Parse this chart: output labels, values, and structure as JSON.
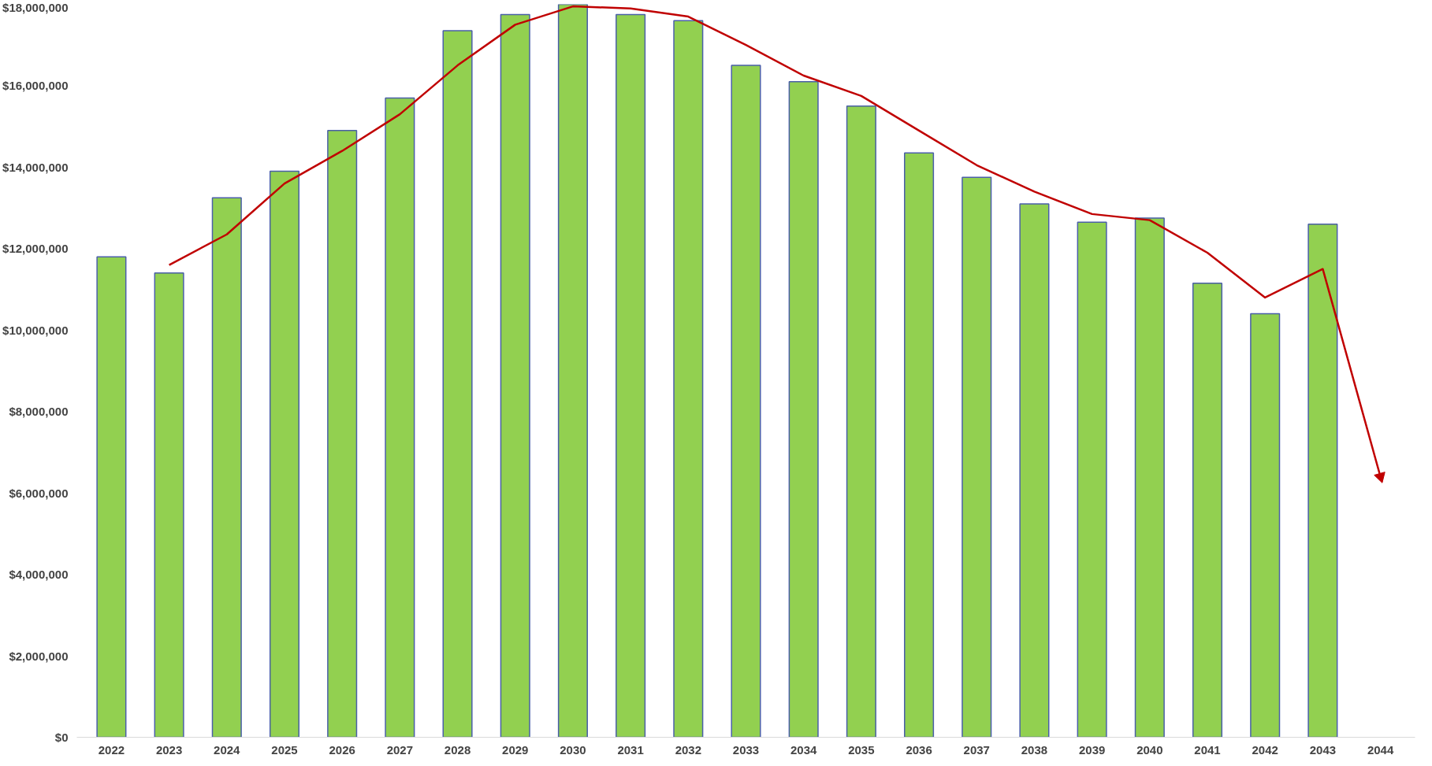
{
  "chart_data": {
    "type": "bar",
    "categories": [
      "2022",
      "2023",
      "2024",
      "2025",
      "2026",
      "2027",
      "2028",
      "2029",
      "2030",
      "2031",
      "2032",
      "2033",
      "2034",
      "2035",
      "2036",
      "2037",
      "2038",
      "2039",
      "2040",
      "2041",
      "2042",
      "2043",
      "2044"
    ],
    "ylim": [
      0,
      18000000
    ],
    "yticks": [
      {
        "value": 0,
        "label": "$0"
      },
      {
        "value": 2000000,
        "label": "$2,000,000"
      },
      {
        "value": 4000000,
        "label": "$4,000,000"
      },
      {
        "value": 6000000,
        "label": "$6,000,000"
      },
      {
        "value": 8000000,
        "label": "$8,000,000"
      },
      {
        "value": 10000000,
        "label": "$10,000,000"
      },
      {
        "value": 12000000,
        "label": "$12,000,000"
      },
      {
        "value": 14000000,
        "label": "$14,000,000"
      },
      {
        "value": 16000000,
        "label": "$16,000,000"
      },
      {
        "value": 18000000,
        "label": "$18,000,000"
      }
    ],
    "grid": false,
    "series": [
      {
        "color": "#92d050",
        "values": [
          11800000,
          11400000,
          13250000,
          13900000,
          14900000,
          15700000,
          17350000,
          17750000,
          18000000,
          17750000,
          17600000,
          16500000,
          16100000,
          15500000,
          14350000,
          13750000,
          13100000,
          12650000,
          12750000,
          11150000,
          10400000,
          12600000,
          null
        ]
      },
      {
        "type": "line",
        "color": "#c00000",
        "values": [
          null,
          11600000,
          12350000,
          13600000,
          14400000,
          15300000,
          16500000,
          17500000,
          17950000,
          17900000,
          17700000,
          17000000,
          16250000,
          15750000,
          14900000,
          14050000,
          13400000,
          12850000,
          12700000,
          11900000,
          10800000,
          11500000,
          6400000
        ]
      }
    ]
  }
}
